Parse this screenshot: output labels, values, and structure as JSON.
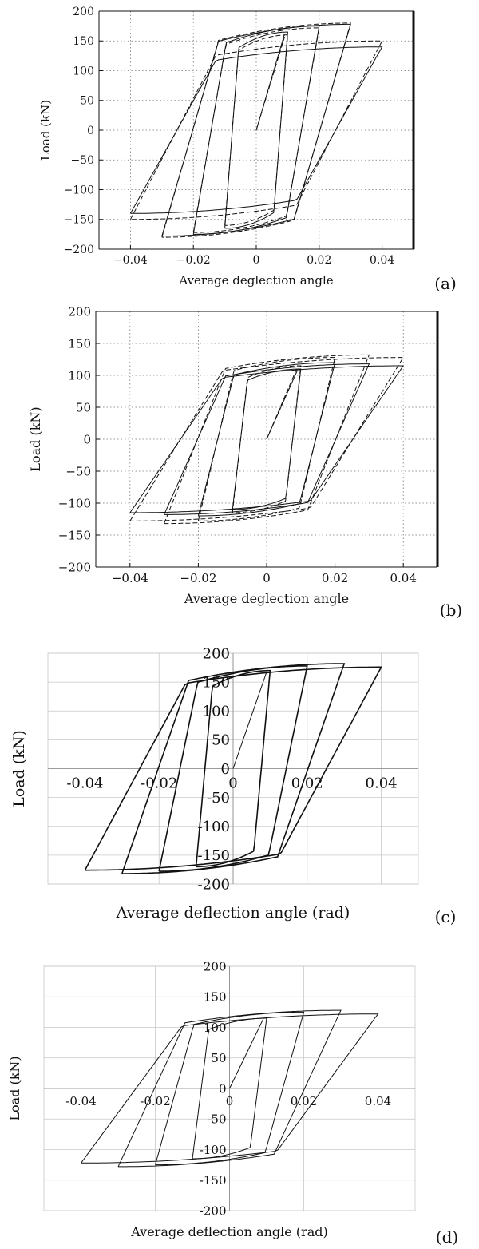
{
  "chart_data": [
    {
      "panel": "(a)",
      "type": "line",
      "xlabel": "Average deglection angle",
      "ylabel": "Load  (kN)",
      "xlim": [
        -0.05,
        0.05
      ],
      "ylim": [
        -200,
        200
      ],
      "x_ticks": [
        -0.04,
        -0.02,
        0,
        0.02,
        0.04
      ],
      "x_tick_labels": [
        "−0.04",
        "−0.02",
        "0",
        "0.02",
        "0.04"
      ],
      "y_ticks": [
        -200,
        -150,
        -100,
        -50,
        0,
        50,
        100,
        150,
        200
      ],
      "y_tick_labels": [
        "−200",
        "−150",
        "−100",
        "−50",
        "0",
        "50",
        "100",
        "150",
        "200"
      ],
      "grid": "dotted",
      "series": [
        {
          "style": "solid",
          "loops": [
            {
              "amp": 0.01,
              "peak": 165
            },
            {
              "amp": 0.02,
              "peak": 175
            },
            {
              "amp": 0.03,
              "peak": 178
            },
            {
              "amp": 0.04,
              "peak": 140
            }
          ]
        },
        {
          "style": "dashed",
          "loops": [
            {
              "amp": 0.01,
              "peak": 160
            },
            {
              "amp": 0.02,
              "peak": 172
            },
            {
              "amp": 0.03,
              "peak": 180
            },
            {
              "amp": 0.04,
              "peak": 150
            }
          ]
        }
      ]
    },
    {
      "panel": "(b)",
      "type": "line",
      "xlabel": "Average deglection angle",
      "ylabel": "Load  (kN)",
      "xlim": [
        -0.05,
        0.05
      ],
      "ylim": [
        -200,
        200
      ],
      "x_ticks": [
        -0.04,
        -0.02,
        0,
        0.02,
        0.04
      ],
      "x_tick_labels": [
        "−0.04",
        "−0.02",
        "0",
        "0.02",
        "0.04"
      ],
      "y_ticks": [
        -200,
        -150,
        -100,
        -50,
        0,
        50,
        100,
        150,
        200
      ],
      "y_tick_labels": [
        "−200",
        "−150",
        "−100",
        "−50",
        "0",
        "50",
        "100",
        "150",
        "200"
      ],
      "grid": "dotted",
      "series": [
        {
          "style": "solid",
          "loops": [
            {
              "amp": 0.01,
              "peak": 110
            },
            {
              "amp": 0.02,
              "peak": 120
            },
            {
              "amp": 0.03,
              "peak": 118
            },
            {
              "amp": 0.04,
              "peak": 115
            }
          ]
        },
        {
          "style": "dashed",
          "loops": [
            {
              "amp": 0.01,
              "peak": 115
            },
            {
              "amp": 0.02,
              "peak": 128
            },
            {
              "amp": 0.03,
              "peak": 132
            },
            {
              "amp": 0.04,
              "peak": 128
            }
          ]
        }
      ]
    },
    {
      "panel": "(c)",
      "type": "line",
      "xlabel": "Average deflection angle (rad)",
      "ylabel": "Load (kN)",
      "xlim": [
        -0.05,
        0.05
      ],
      "ylim": [
        -200,
        200
      ],
      "x_ticks": [
        -0.04,
        -0.02,
        0,
        0.02,
        0.04
      ],
      "x_tick_labels": [
        "-0.04",
        "-0.02",
        "0",
        "0.02",
        "0.04"
      ],
      "y_ticks": [
        -200,
        -150,
        -100,
        -50,
        0,
        50,
        100,
        150,
        200
      ],
      "y_tick_labels": [
        "-200",
        "-150",
        "-100",
        "-50",
        "0",
        "50",
        "100",
        "150",
        "200"
      ],
      "grid": "solid",
      "series": [
        {
          "style": "solid",
          "loops": [
            {
              "amp": 0.01,
              "peak": 170
            },
            {
              "amp": 0.02,
              "peak": 178
            },
            {
              "amp": 0.03,
              "peak": 182
            },
            {
              "amp": 0.04,
              "peak": 176
            }
          ]
        }
      ]
    },
    {
      "panel": "(d)",
      "type": "line",
      "xlabel": "Average deflection angle (rad)",
      "ylabel": "Load (kN)",
      "xlim": [
        -0.05,
        0.05
      ],
      "ylim": [
        -200,
        200
      ],
      "x_ticks": [
        -0.04,
        -0.02,
        0,
        0.02,
        0.04
      ],
      "x_tick_labels": [
        "-0.04",
        "-0.02",
        "0",
        "0.02",
        "0.04"
      ],
      "y_ticks": [
        -200,
        -150,
        -100,
        -50,
        0,
        50,
        100,
        150,
        200
      ],
      "y_tick_labels": [
        "-200",
        "-150",
        "-100",
        "-50",
        "0",
        "50",
        "100",
        "150",
        "200"
      ],
      "grid": "solid",
      "series": [
        {
          "style": "solid",
          "loops": [
            {
              "amp": 0.01,
              "peak": 115
            },
            {
              "amp": 0.02,
              "peak": 125
            },
            {
              "amp": 0.03,
              "peak": 128
            },
            {
              "amp": 0.04,
              "peak": 122
            }
          ]
        }
      ]
    }
  ]
}
